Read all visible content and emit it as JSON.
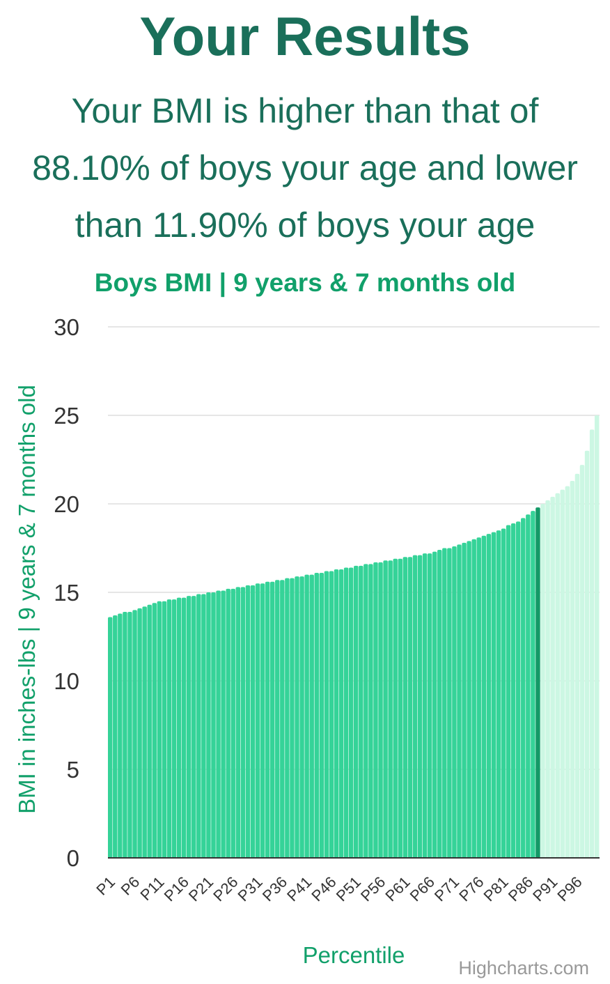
{
  "results": {
    "heading": "Your Results",
    "summary_lines": [
      "Your BMI is higher than that of",
      "88.10% of boys your age and lower",
      "than 11.90% of boys your age"
    ]
  },
  "colors": {
    "heading": "#1a6f5a",
    "accent": "#11a06a",
    "below": "#35d398",
    "current": "#139a67",
    "above": "#ccf7e3",
    "grid": "#e6e6e6",
    "axis": "#333333"
  },
  "chart_data": {
    "type": "bar",
    "title": "Boys BMI | 9 years & 7 months old",
    "xlabel": "Percentile",
    "ylabel": "BMI in inches-lbs | 9 years & 7 months old",
    "credits": "Highcharts.com",
    "ylim": [
      0,
      30
    ],
    "yticks": [
      0,
      5,
      10,
      15,
      20,
      25,
      30
    ],
    "grid": true,
    "highlight_index": 87,
    "categories": [
      "P1",
      "P2",
      "P3",
      "P4",
      "P5",
      "P6",
      "P7",
      "P8",
      "P9",
      "P10",
      "P11",
      "P12",
      "P13",
      "P14",
      "P15",
      "P16",
      "P17",
      "P18",
      "P19",
      "P20",
      "P21",
      "P22",
      "P23",
      "P24",
      "P25",
      "P26",
      "P27",
      "P28",
      "P29",
      "P30",
      "P31",
      "P32",
      "P33",
      "P34",
      "P35",
      "P36",
      "P37",
      "P38",
      "P39",
      "P40",
      "P41",
      "P42",
      "P43",
      "P44",
      "P45",
      "P46",
      "P47",
      "P48",
      "P49",
      "P50",
      "P51",
      "P52",
      "P53",
      "P54",
      "P55",
      "P56",
      "P57",
      "P58",
      "P59",
      "P60",
      "P61",
      "P62",
      "P63",
      "P64",
      "P65",
      "P66",
      "P67",
      "P68",
      "P69",
      "P70",
      "P71",
      "P72",
      "P73",
      "P74",
      "P75",
      "P76",
      "P77",
      "P78",
      "P79",
      "P80",
      "P81",
      "P82",
      "P83",
      "P84",
      "P85",
      "P86",
      "P87",
      "P88",
      "P89",
      "P90",
      "P91",
      "P92",
      "P93",
      "P94",
      "P95",
      "P96",
      "P97",
      "P98",
      "P99",
      "P100"
    ],
    "tick_labels": [
      "P1",
      "P6",
      "P11",
      "P16",
      "P21",
      "P26",
      "P31",
      "P36",
      "P41",
      "P46",
      "P51",
      "P56",
      "P61",
      "P66",
      "P71",
      "P76",
      "P81",
      "P86",
      "P91",
      "P96"
    ],
    "values": [
      13.6,
      13.7,
      13.8,
      13.9,
      13.9,
      14.0,
      14.1,
      14.2,
      14.3,
      14.4,
      14.5,
      14.5,
      14.6,
      14.6,
      14.7,
      14.7,
      14.8,
      14.8,
      14.9,
      14.9,
      15.0,
      15.0,
      15.1,
      15.1,
      15.2,
      15.2,
      15.3,
      15.3,
      15.4,
      15.4,
      15.5,
      15.5,
      15.6,
      15.6,
      15.7,
      15.7,
      15.8,
      15.8,
      15.9,
      15.9,
      16.0,
      16.0,
      16.1,
      16.1,
      16.2,
      16.2,
      16.3,
      16.3,
      16.4,
      16.4,
      16.5,
      16.5,
      16.6,
      16.6,
      16.7,
      16.7,
      16.8,
      16.8,
      16.9,
      16.9,
      17.0,
      17.0,
      17.1,
      17.1,
      17.2,
      17.2,
      17.3,
      17.4,
      17.5,
      17.5,
      17.6,
      17.7,
      17.8,
      17.9,
      18.0,
      18.1,
      18.2,
      18.3,
      18.4,
      18.5,
      18.6,
      18.8,
      18.9,
      19.0,
      19.2,
      19.4,
      19.6,
      19.8,
      20.0,
      20.2,
      20.4,
      20.6,
      20.8,
      21.0,
      21.3,
      21.7,
      22.2,
      23.0,
      24.2,
      25.0
    ]
  }
}
